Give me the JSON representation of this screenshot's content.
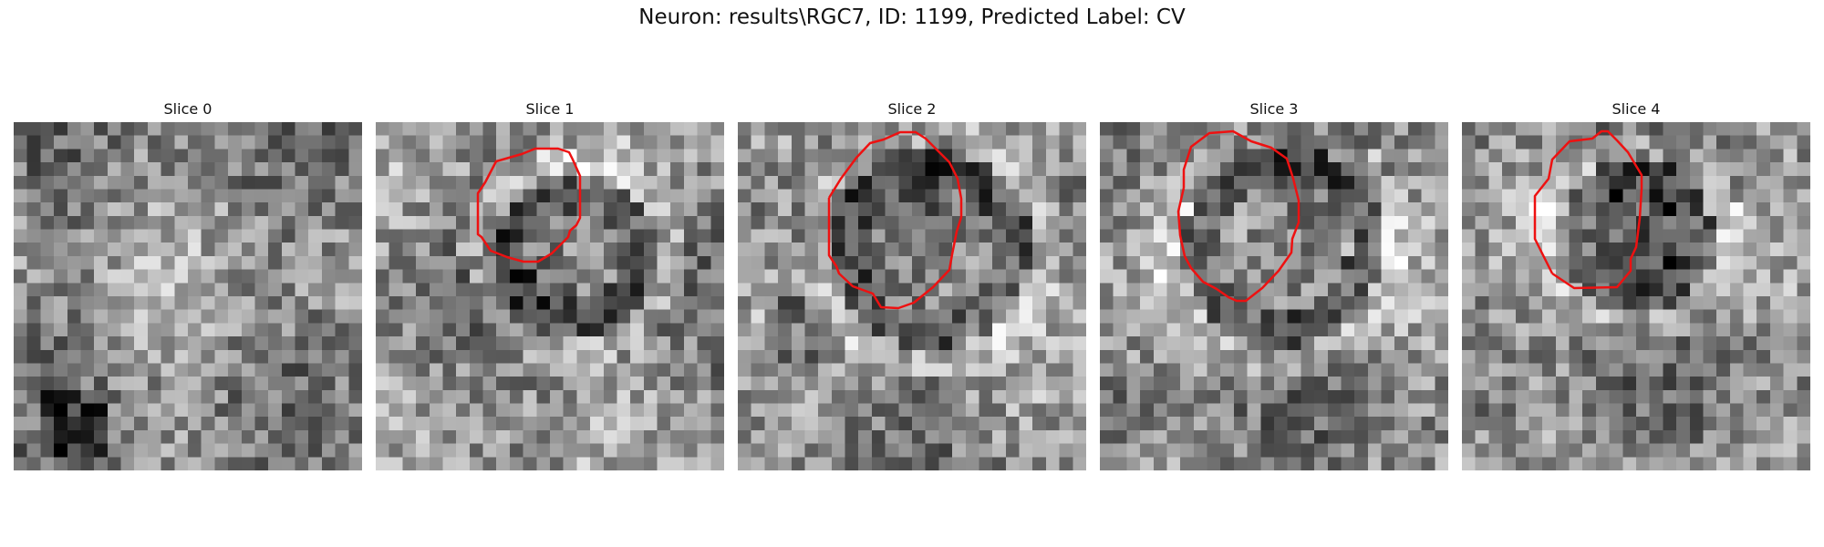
{
  "figure": {
    "title": "Neuron: results\\RGC7, ID: 1199, Predicted Label: CV"
  },
  "slices": [
    {
      "label": "Slice 0",
      "has_contour": false
    },
    {
      "label": "Slice 1",
      "has_contour": true
    },
    {
      "label": "Slice 2",
      "has_contour": true
    },
    {
      "label": "Slice 3",
      "has_contour": true
    },
    {
      "label": "Slice 4",
      "has_contour": true
    }
  ],
  "colors": {
    "contour": "#ee1111",
    "background": "#ffffff",
    "colormap": "grayscale"
  }
}
